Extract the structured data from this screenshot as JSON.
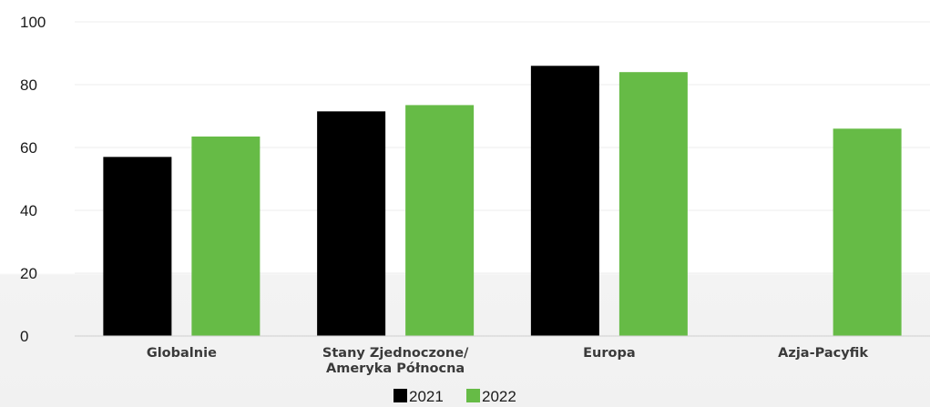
{
  "chart_data": {
    "type": "bar",
    "categories": [
      [
        "Globalnie"
      ],
      [
        "Stany Zjednoczone/",
        "Ameryka Północna"
      ],
      [
        "Europa"
      ],
      [
        "Azja-Pacyfik"
      ]
    ],
    "series": [
      {
        "name": "2021",
        "color": "#000000",
        "values": [
          57,
          71.5,
          86,
          null
        ]
      },
      {
        "name": "2022",
        "color": "#66bb46",
        "values": [
          63.5,
          73.5,
          84,
          66
        ]
      }
    ],
    "yticks": [
      0,
      20,
      40,
      60,
      80,
      100
    ],
    "ylim": [
      0,
      100
    ],
    "grid": true,
    "legend_position": "bottom-center",
    "title": "",
    "xlabel": "",
    "ylabel": ""
  }
}
